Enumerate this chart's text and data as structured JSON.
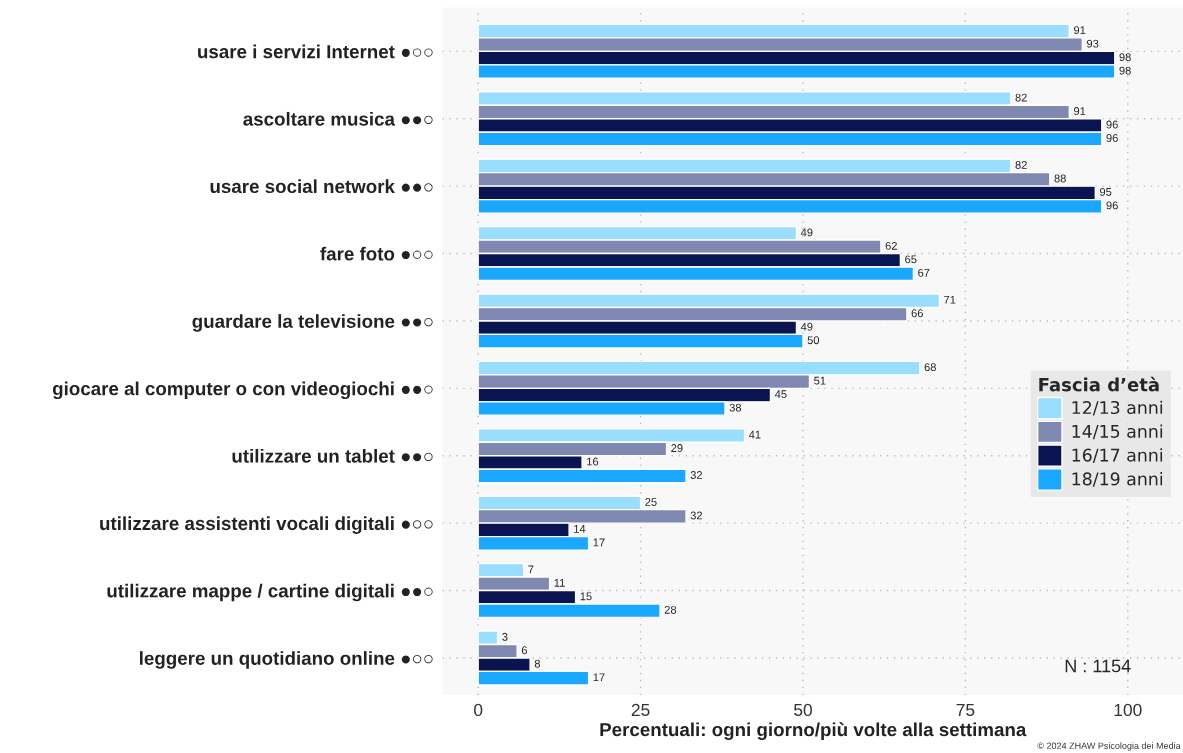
{
  "chart_data": {
    "type": "bar",
    "orientation": "horizontal",
    "categories": [
      "usare i servizi Internet ●○○",
      "ascoltare musica ●●○",
      "usare social network ●●○",
      "fare foto ●○○",
      "guardare la televisione ●●○",
      "giocare al computer o con videogiochi ●●○",
      "utilizzare un tablet ●●○",
      "utilizzare assistenti vocali digitali ●○○",
      "utilizzare mappe / cartine digitali ●●○",
      "leggere un quotidiano online ●○○"
    ],
    "series": [
      {
        "name": "12/13 anni",
        "color": "#99ddff",
        "values": [
          91,
          82,
          82,
          49,
          71,
          68,
          41,
          25,
          7,
          3
        ]
      },
      {
        "name": "14/15 anni",
        "color": "#7f88b0",
        "values": [
          93,
          91,
          88,
          62,
          66,
          51,
          29,
          32,
          11,
          6
        ]
      },
      {
        "name": "16/17 anni",
        "color": "#0a1450",
        "values": [
          98,
          96,
          95,
          65,
          49,
          45,
          16,
          14,
          15,
          8
        ]
      },
      {
        "name": "18/19 anni",
        "color": "#1aa7ff",
        "values": [
          98,
          96,
          96,
          67,
          50,
          38,
          32,
          17,
          28,
          17
        ]
      }
    ],
    "xlabel": "Percentuali: ogni giorno/più volte alla settimana",
    "legend_title": "Fascia d’età",
    "xlim": [
      -5.5,
      108.5
    ],
    "xticks": [
      0,
      25,
      50,
      75,
      100
    ],
    "grid": true,
    "legend": "right",
    "data_labels": true,
    "annotations": [
      "N : 1154",
      "© 2024 ZHAW Psicologia dei Media"
    ]
  }
}
